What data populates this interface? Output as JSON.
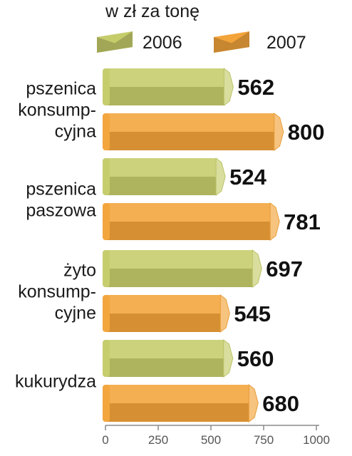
{
  "chart_data": {
    "type": "bar",
    "orientation": "horizontal",
    "unit_label": "w zł za tonę",
    "categories": [
      [
        "pszenica",
        "konsump-",
        "cyjna"
      ],
      [
        "pszenica",
        "paszowa"
      ],
      [
        "żyto",
        "konsump-",
        "cyjne"
      ],
      [
        "kukurydza"
      ]
    ],
    "series": [
      {
        "name": "2006",
        "values": [
          562,
          524,
          697,
          560
        ],
        "color": "#c5cc6a"
      },
      {
        "name": "2007",
        "values": [
          800,
          781,
          545,
          680
        ],
        "color": "#f3a43a"
      }
    ],
    "value_labels": [
      [
        "562",
        "524",
        "697",
        "560"
      ],
      [
        "800",
        "781",
        "545",
        "680"
      ]
    ],
    "xlim": [
      0,
      1000
    ],
    "xticks": [
      0,
      250,
      500,
      750,
      1000
    ],
    "legend_position": "top",
    "grid": false
  }
}
